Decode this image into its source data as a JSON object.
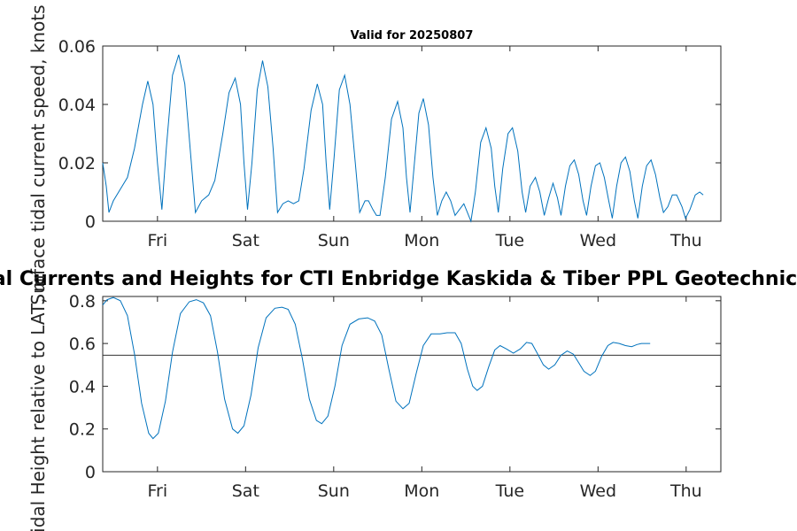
{
  "chart_data": [
    {
      "type": "line",
      "title": "Valid for 20250807",
      "ylabel": "Surface tidal current speed, knots",
      "xlabel": "",
      "categories": [
        "Fri",
        "Sat",
        "Sun",
        "Mon",
        "Tue",
        "Wed",
        "Thu"
      ],
      "xlim": [
        0,
        7
      ],
      "ylim": [
        0,
        0.06
      ],
      "yticks": [
        0,
        0.02,
        0.04,
        0.06
      ],
      "ytick_labels": [
        "0",
        "0.02",
        "0.04",
        "0.06"
      ],
      "grid": false,
      "series": [
        {
          "color": "#0072BD",
          "points": [
            [
              0.0,
              0.02
            ],
            [
              0.04,
              0.012
            ],
            [
              0.07,
              0.003
            ],
            [
              0.12,
              0.007
            ],
            [
              0.2,
              0.011
            ],
            [
              0.28,
              0.015
            ],
            [
              0.36,
              0.025
            ],
            [
              0.45,
              0.04
            ],
            [
              0.51,
              0.048
            ],
            [
              0.57,
              0.04
            ],
            [
              0.62,
              0.02
            ],
            [
              0.67,
              0.004
            ],
            [
              0.72,
              0.025
            ],
            [
              0.79,
              0.05
            ],
            [
              0.86,
              0.057
            ],
            [
              0.93,
              0.047
            ],
            [
              0.99,
              0.025
            ],
            [
              1.05,
              0.003
            ],
            [
              1.12,
              0.007
            ],
            [
              1.2,
              0.009
            ],
            [
              1.27,
              0.014
            ],
            [
              1.36,
              0.03
            ],
            [
              1.43,
              0.044
            ],
            [
              1.5,
              0.049
            ],
            [
              1.56,
              0.04
            ],
            [
              1.6,
              0.02
            ],
            [
              1.64,
              0.004
            ],
            [
              1.69,
              0.02
            ],
            [
              1.75,
              0.045
            ],
            [
              1.81,
              0.055
            ],
            [
              1.87,
              0.046
            ],
            [
              1.93,
              0.025
            ],
            [
              1.98,
              0.003
            ],
            [
              2.04,
              0.006
            ],
            [
              2.1,
              0.007
            ],
            [
              2.16,
              0.006
            ],
            [
              2.22,
              0.007
            ],
            [
              2.28,
              0.018
            ],
            [
              2.36,
              0.038
            ],
            [
              2.43,
              0.047
            ],
            [
              2.49,
              0.04
            ],
            [
              2.53,
              0.02
            ],
            [
              2.57,
              0.004
            ],
            [
              2.62,
              0.022
            ],
            [
              2.68,
              0.045
            ],
            [
              2.74,
              0.05
            ],
            [
              2.8,
              0.04
            ],
            [
              2.86,
              0.02
            ],
            [
              2.91,
              0.003
            ],
            [
              2.97,
              0.007
            ],
            [
              3.01,
              0.007
            ],
            [
              3.06,
              0.004
            ],
            [
              3.1,
              0.002
            ],
            [
              3.14,
              0.002
            ],
            [
              3.2,
              0.015
            ],
            [
              3.27,
              0.035
            ],
            [
              3.34,
              0.041
            ],
            [
              3.4,
              0.032
            ],
            [
              3.44,
              0.015
            ],
            [
              3.48,
              0.003
            ],
            [
              3.53,
              0.02
            ],
            [
              3.58,
              0.037
            ],
            [
              3.63,
              0.042
            ],
            [
              3.69,
              0.033
            ],
            [
              3.74,
              0.015
            ],
            [
              3.79,
              0.002
            ],
            [
              3.84,
              0.007
            ],
            [
              3.89,
              0.01
            ],
            [
              3.94,
              0.007
            ],
            [
              3.99,
              0.002
            ],
            [
              4.04,
              0.004
            ],
            [
              4.09,
              0.006
            ],
            [
              4.13,
              0.003
            ],
            [
              4.17,
              0.0
            ],
            [
              4.22,
              0.01
            ],
            [
              4.28,
              0.027
            ],
            [
              4.34,
              0.032
            ],
            [
              4.4,
              0.025
            ],
            [
              4.44,
              0.012
            ],
            [
              4.48,
              0.003
            ],
            [
              4.53,
              0.018
            ],
            [
              4.59,
              0.03
            ],
            [
              4.64,
              0.032
            ],
            [
              4.7,
              0.024
            ],
            [
              4.75,
              0.01
            ],
            [
              4.79,
              0.003
            ],
            [
              4.84,
              0.012
            ],
            [
              4.9,
              0.015
            ],
            [
              4.95,
              0.01
            ],
            [
              5.0,
              0.002
            ],
            [
              5.05,
              0.008
            ],
            [
              5.1,
              0.013
            ],
            [
              5.15,
              0.008
            ],
            [
              5.19,
              0.002
            ],
            [
              5.24,
              0.012
            ],
            [
              5.29,
              0.019
            ],
            [
              5.34,
              0.021
            ],
            [
              5.39,
              0.016
            ],
            [
              5.44,
              0.007
            ],
            [
              5.48,
              0.002
            ],
            [
              5.53,
              0.012
            ],
            [
              5.58,
              0.019
            ],
            [
              5.63,
              0.02
            ],
            [
              5.68,
              0.015
            ],
            [
              5.73,
              0.007
            ],
            [
              5.77,
              0.001
            ],
            [
              5.82,
              0.012
            ],
            [
              5.87,
              0.02
            ],
            [
              5.92,
              0.022
            ],
            [
              5.97,
              0.017
            ],
            [
              6.02,
              0.007
            ],
            [
              6.06,
              0.001
            ],
            [
              6.11,
              0.012
            ],
            [
              6.16,
              0.019
            ],
            [
              6.21,
              0.021
            ],
            [
              6.26,
              0.016
            ],
            [
              6.31,
              0.008
            ],
            [
              6.35,
              0.003
            ],
            [
              6.4,
              0.005
            ],
            [
              6.45,
              0.009
            ],
            [
              6.5,
              0.009
            ],
            [
              6.56,
              0.005
            ],
            [
              6.6,
              0.001
            ],
            [
              6.65,
              0.004
            ],
            [
              6.71,
              0.009
            ],
            [
              6.76,
              0.01
            ],
            [
              6.8,
              0.009
            ]
          ]
        }
      ]
    },
    {
      "type": "line",
      "title": "Tidal Currents and Heights for CTI Enbridge  Kaskida & Tiber PPL Geotechnical and",
      "ylabel": "Tidal Height relative to LAT, m",
      "xlabel": "",
      "categories": [
        "Fri",
        "Sat",
        "Sun",
        "Mon",
        "Tue",
        "Wed",
        "Thu"
      ],
      "xlim": [
        0,
        7
      ],
      "ylim": [
        0,
        0.82
      ],
      "yticks": [
        0,
        0.2,
        0.4,
        0.6,
        0.8
      ],
      "ytick_labels": [
        "0",
        "0.2",
        "0.4",
        "0.6",
        "0.8"
      ],
      "reference_line": 0.545,
      "grid": false,
      "series": [
        {
          "color": "#0072BD",
          "points": [
            [
              0.0,
              0.78
            ],
            [
              0.05,
              0.805
            ],
            [
              0.12,
              0.815
            ],
            [
              0.2,
              0.8
            ],
            [
              0.28,
              0.73
            ],
            [
              0.36,
              0.55
            ],
            [
              0.44,
              0.32
            ],
            [
              0.52,
              0.18
            ],
            [
              0.57,
              0.155
            ],
            [
              0.63,
              0.18
            ],
            [
              0.71,
              0.33
            ],
            [
              0.79,
              0.56
            ],
            [
              0.88,
              0.74
            ],
            [
              0.98,
              0.795
            ],
            [
              1.06,
              0.805
            ],
            [
              1.14,
              0.79
            ],
            [
              1.22,
              0.73
            ],
            [
              1.3,
              0.56
            ],
            [
              1.38,
              0.34
            ],
            [
              1.47,
              0.2
            ],
            [
              1.53,
              0.18
            ],
            [
              1.6,
              0.215
            ],
            [
              1.68,
              0.36
            ],
            [
              1.76,
              0.58
            ],
            [
              1.85,
              0.72
            ],
            [
              1.95,
              0.765
            ],
            [
              2.03,
              0.77
            ],
            [
              2.1,
              0.76
            ],
            [
              2.18,
              0.69
            ],
            [
              2.26,
              0.53
            ],
            [
              2.34,
              0.34
            ],
            [
              2.42,
              0.24
            ],
            [
              2.48,
              0.225
            ],
            [
              2.55,
              0.26
            ],
            [
              2.63,
              0.4
            ],
            [
              2.71,
              0.59
            ],
            [
              2.8,
              0.69
            ],
            [
              2.9,
              0.715
            ],
            [
              3.0,
              0.72
            ],
            [
              3.08,
              0.705
            ],
            [
              3.16,
              0.64
            ],
            [
              3.24,
              0.48
            ],
            [
              3.32,
              0.33
            ],
            [
              3.4,
              0.295
            ],
            [
              3.47,
              0.32
            ],
            [
              3.55,
              0.46
            ],
            [
              3.63,
              0.59
            ],
            [
              3.72,
              0.645
            ],
            [
              3.82,
              0.645
            ],
            [
              3.9,
              0.65
            ],
            [
              3.99,
              0.65
            ],
            [
              4.06,
              0.6
            ],
            [
              4.13,
              0.48
            ],
            [
              4.19,
              0.4
            ],
            [
              4.24,
              0.38
            ],
            [
              4.3,
              0.4
            ],
            [
              4.37,
              0.49
            ],
            [
              4.44,
              0.57
            ],
            [
              4.5,
              0.59
            ],
            [
              4.57,
              0.575
            ],
            [
              4.65,
              0.555
            ],
            [
              4.73,
              0.575
            ],
            [
              4.8,
              0.605
            ],
            [
              4.86,
              0.6
            ],
            [
              4.92,
              0.555
            ],
            [
              4.99,
              0.5
            ],
            [
              5.05,
              0.48
            ],
            [
              5.12,
              0.5
            ],
            [
              5.19,
              0.545
            ],
            [
              5.26,
              0.565
            ],
            [
              5.33,
              0.55
            ],
            [
              5.39,
              0.51
            ],
            [
              5.45,
              0.47
            ],
            [
              5.52,
              0.45
            ],
            [
              5.58,
              0.47
            ],
            [
              5.65,
              0.54
            ],
            [
              5.72,
              0.59
            ],
            [
              5.78,
              0.605
            ],
            [
              5.85,
              0.6
            ],
            [
              5.92,
              0.59
            ],
            [
              5.99,
              0.585
            ],
            [
              6.05,
              0.595
            ],
            [
              6.1,
              0.6
            ],
            [
              6.2,
              0.6
            ]
          ]
        }
      ]
    }
  ]
}
